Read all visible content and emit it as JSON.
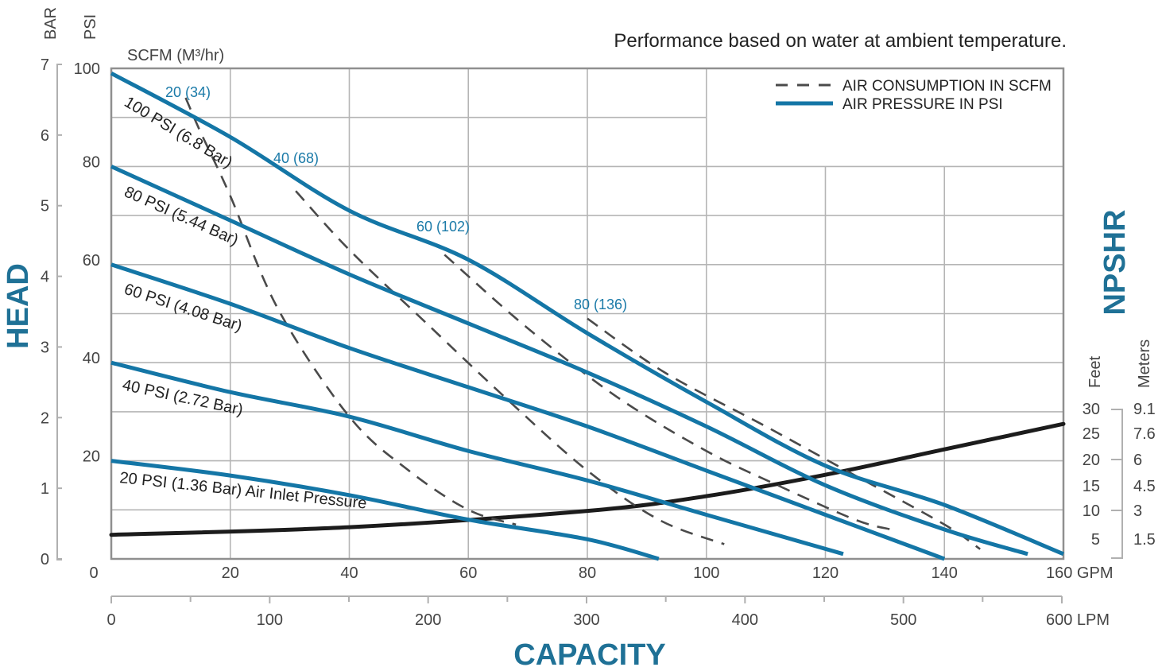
{
  "chart_data": {
    "type": "line",
    "title": "Performance based on water at ambient temperature.",
    "xlabel": "CAPACITY",
    "ylabel": "HEAD",
    "y2label": "NPSHR",
    "x_primary": {
      "unit": "GPM",
      "range": [
        0,
        160
      ],
      "ticks": [
        "0",
        "20",
        "40",
        "60",
        "80",
        "100",
        "120",
        "140",
        "160 GPM"
      ]
    },
    "x_secondary": {
      "unit": "LPM",
      "range": [
        0,
        600
      ],
      "ticks": [
        "0",
        "100",
        "200",
        "300",
        "400",
        "500",
        "600 LPM"
      ]
    },
    "y_primary": {
      "unit": "PSI",
      "unit_label": "PSI",
      "range": [
        0,
        100
      ],
      "ticks": [
        "20",
        "40",
        "60",
        "80",
        "100"
      ]
    },
    "y_bar": {
      "unit": "BAR",
      "unit_label": "BAR",
      "range": [
        0,
        7
      ],
      "ticks": [
        "0",
        "1",
        "2",
        "3",
        "4",
        "5",
        "6",
        "7"
      ]
    },
    "y_npshr_feet": {
      "unit_label": "Feet",
      "ticks": [
        "30",
        "25",
        "20",
        "15",
        "10",
        "5"
      ]
    },
    "y_npshr_meters": {
      "unit_label": "Meters",
      "ticks": [
        "9.1",
        "7.6",
        "6",
        "4.5",
        "3",
        "1.5"
      ]
    },
    "scfm_header": "SCFM (M³/hr)",
    "grid": true,
    "legend": {
      "position": "top-right",
      "entries": [
        {
          "label": "AIR CONSUMPTION IN SCFM",
          "style": "dashed"
        },
        {
          "label": "AIR PRESSURE IN PSI",
          "style": "solid-blue"
        }
      ]
    },
    "colors": {
      "pressure": "#1476a6",
      "scfm": "#4a4a4a",
      "npshr": "#1c1c1c",
      "title_accent": "#1f7196",
      "scfm_label": "#1a7aa8"
    },
    "pressure_series": [
      {
        "name": "100 PSI (6.8 Bar)",
        "x": [
          0,
          20,
          40,
          60,
          80,
          100,
          120,
          140,
          160
        ],
        "y": [
          99,
          86,
          71,
          61,
          46,
          32,
          19,
          11,
          1
        ]
      },
      {
        "name": "80 PSI (5.44 Bar)",
        "x": [
          0,
          20,
          40,
          60,
          80,
          100,
          120,
          140,
          154
        ],
        "y": [
          80,
          69,
          58,
          48,
          38,
          27,
          15,
          6,
          1
        ]
      },
      {
        "name": "60 PSI (4.08 Bar)",
        "x": [
          0,
          20,
          40,
          60,
          80,
          100,
          120,
          140
        ],
        "y": [
          60,
          52,
          43,
          35,
          27,
          18,
          9,
          0
        ]
      },
      {
        "name": "40 PSI (2.72 Bar)",
        "x": [
          0,
          20,
          40,
          60,
          80,
          100,
          123
        ],
        "y": [
          40,
          34,
          29,
          22,
          16,
          9,
          1
        ]
      },
      {
        "name": "20 PSI (1.36 Bar) Air Inlet Pressure",
        "x": [
          0,
          20,
          40,
          60,
          80,
          92
        ],
        "y": [
          20,
          17,
          13,
          8,
          4,
          0
        ]
      }
    ],
    "scfm_series": [
      {
        "name": "20 (34)",
        "x": [
          12.5,
          15,
          20,
          28,
          40,
          50,
          60,
          68
        ],
        "y": [
          94,
          87,
          74,
          51,
          29,
          18,
          10,
          7
        ]
      },
      {
        "name": "40 (68)",
        "x": [
          31,
          40,
          53,
          67,
          80,
          92,
          103
        ],
        "y": [
          75,
          63,
          48,
          32,
          18,
          8,
          3
        ]
      },
      {
        "name": "60 (102)",
        "x": [
          56,
          70,
          85,
          100,
          112,
          125,
          131
        ],
        "y": [
          62,
          47,
          33,
          22,
          15,
          8,
          6
        ]
      },
      {
        "name": "80 (136)",
        "x": [
          80,
          93,
          110,
          125,
          140,
          146
        ],
        "y": [
          49,
          38,
          27,
          17,
          7,
          2
        ]
      }
    ],
    "npshr_series": {
      "name": "NPSHR",
      "unit": "ft",
      "x": [
        0,
        40,
        80,
        100,
        120,
        140,
        160
      ],
      "y": [
        5.2,
        6.7,
        9.9,
        12.8,
        17,
        22,
        27
      ]
    }
  }
}
